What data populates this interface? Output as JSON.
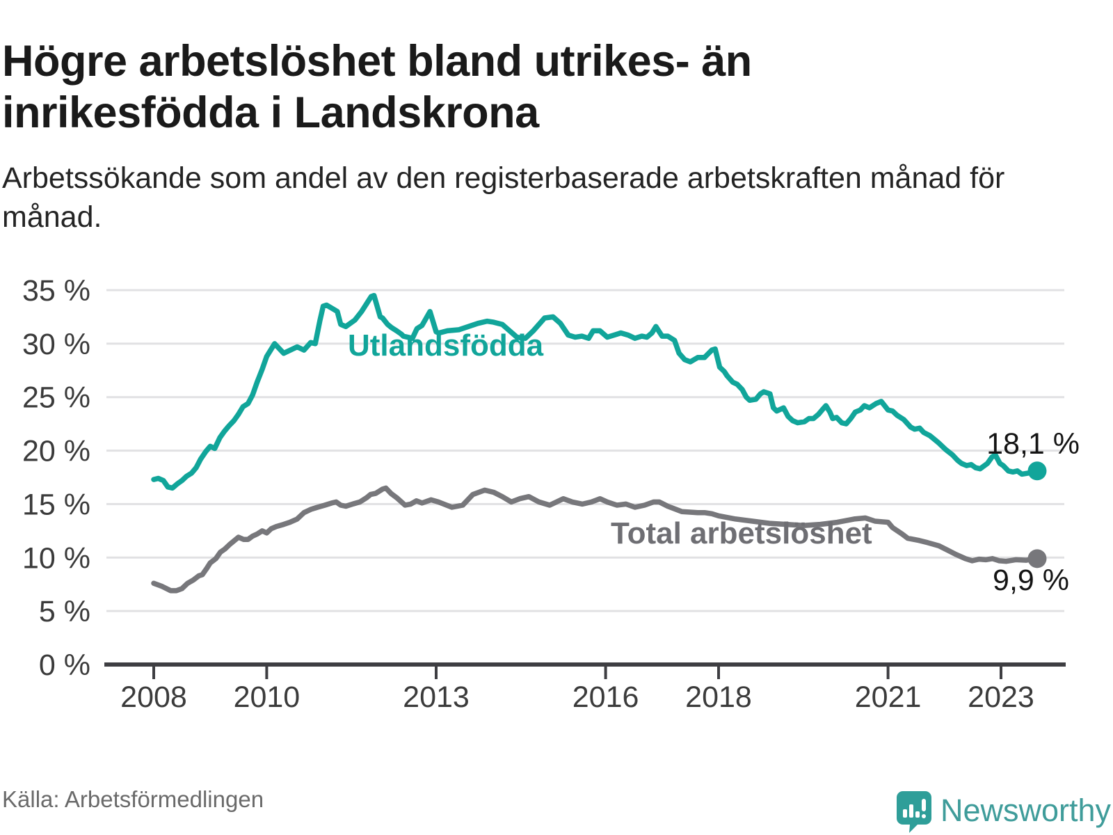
{
  "header": {
    "title": "Högre arbetslöshet bland utrikes- än inrikesfödda i Landskrona",
    "subtitle": "Arbetssökande som andel av den registerbaserade arbetskraften månad för månad."
  },
  "footer": {
    "source": "Källa: Arbetsförmedlingen",
    "brand": "Newsworthy"
  },
  "colors": {
    "teal_line": "#11a59a",
    "gray_line": "#77777b",
    "gray_label": "#6e6e73",
    "grid": "#e1e1e3",
    "axis": "#3e3e42",
    "axis_text": "#3b3b3b",
    "value_text": "#141414",
    "logo_icon": "#2f9e99",
    "logo_text": "#3f9c9a"
  },
  "chart_data": {
    "type": "line",
    "title": "Högre arbetslöshet bland utrikes- än inrikesfödda i Landskrona",
    "xlabel": "",
    "ylabel": "",
    "grid": true,
    "legend_position": "inline",
    "x_axis": {
      "ticks": [
        2008,
        2010,
        2013,
        2016,
        2018,
        2021,
        2023
      ],
      "range": [
        2007.2,
        2024.1
      ]
    },
    "y_axis": {
      "ticks": [
        0,
        5,
        10,
        15,
        20,
        25,
        30,
        35
      ],
      "tick_suffix": " %",
      "range": [
        0,
        35
      ]
    },
    "series": [
      {
        "name": "Utlandsfödda",
        "color": "#11a59a",
        "end_label": "18,1 %",
        "end_value": 18.1,
        "points": [
          [
            2008.0,
            17.3
          ],
          [
            2008.08,
            17.4
          ],
          [
            2008.17,
            17.2
          ],
          [
            2008.25,
            16.6
          ],
          [
            2008.33,
            16.5
          ],
          [
            2008.42,
            16.9
          ],
          [
            2008.5,
            17.2
          ],
          [
            2008.58,
            17.6
          ],
          [
            2008.67,
            17.9
          ],
          [
            2008.75,
            18.4
          ],
          [
            2008.83,
            19.2
          ],
          [
            2008.92,
            19.9
          ],
          [
            2009.0,
            20.4
          ],
          [
            2009.08,
            20.2
          ],
          [
            2009.17,
            21.2
          ],
          [
            2009.25,
            21.8
          ],
          [
            2009.33,
            22.3
          ],
          [
            2009.42,
            22.8
          ],
          [
            2009.5,
            23.4
          ],
          [
            2009.58,
            24.1
          ],
          [
            2009.67,
            24.4
          ],
          [
            2009.75,
            25.2
          ],
          [
            2009.83,
            26.4
          ],
          [
            2009.92,
            27.6
          ],
          [
            2010.0,
            28.8
          ],
          [
            2010.14,
            30.0
          ],
          [
            2010.3,
            29.1
          ],
          [
            2010.54,
            29.7
          ],
          [
            2010.66,
            29.4
          ],
          [
            2010.78,
            30.1
          ],
          [
            2010.86,
            30.0
          ],
          [
            2010.94,
            32.1
          ],
          [
            2011.0,
            33.5
          ],
          [
            2011.06,
            33.6
          ],
          [
            2011.19,
            33.2
          ],
          [
            2011.25,
            33.0
          ],
          [
            2011.31,
            31.8
          ],
          [
            2011.4,
            31.6
          ],
          [
            2011.56,
            32.2
          ],
          [
            2011.68,
            33.0
          ],
          [
            2011.85,
            34.4
          ],
          [
            2011.9,
            34.5
          ],
          [
            2012.01,
            32.5
          ],
          [
            2012.05,
            32.4
          ],
          [
            2012.14,
            31.8
          ],
          [
            2012.21,
            31.5
          ],
          [
            2012.3,
            31.2
          ],
          [
            2012.38,
            30.9
          ],
          [
            2012.42,
            30.7
          ],
          [
            2012.58,
            30.5
          ],
          [
            2012.66,
            31.4
          ],
          [
            2012.75,
            31.7
          ],
          [
            2012.89,
            33.0
          ],
          [
            2013.0,
            31.1
          ],
          [
            2013.05,
            31.0
          ],
          [
            2013.2,
            31.2
          ],
          [
            2013.4,
            31.3
          ],
          [
            2013.57,
            31.6
          ],
          [
            2013.74,
            31.9
          ],
          [
            2013.9,
            32.1
          ],
          [
            2014.02,
            32.0
          ],
          [
            2014.17,
            31.8
          ],
          [
            2014.3,
            31.2
          ],
          [
            2014.43,
            30.6
          ],
          [
            2014.58,
            30.5
          ],
          [
            2014.72,
            31.2
          ],
          [
            2014.92,
            32.4
          ],
          [
            2015.07,
            32.5
          ],
          [
            2015.2,
            31.9
          ],
          [
            2015.34,
            30.8
          ],
          [
            2015.46,
            30.6
          ],
          [
            2015.58,
            30.7
          ],
          [
            2015.7,
            30.5
          ],
          [
            2015.78,
            31.2
          ],
          [
            2015.9,
            31.2
          ],
          [
            2016.03,
            30.6
          ],
          [
            2016.15,
            30.8
          ],
          [
            2016.27,
            31.0
          ],
          [
            2016.4,
            30.8
          ],
          [
            2016.52,
            30.5
          ],
          [
            2016.64,
            30.7
          ],
          [
            2016.73,
            30.6
          ],
          [
            2016.82,
            31.0
          ],
          [
            2016.89,
            31.6
          ],
          [
            2017.0,
            30.7
          ],
          [
            2017.1,
            30.7
          ],
          [
            2017.22,
            30.3
          ],
          [
            2017.3,
            29.1
          ],
          [
            2017.4,
            28.5
          ],
          [
            2017.5,
            28.3
          ],
          [
            2017.63,
            28.7
          ],
          [
            2017.75,
            28.7
          ],
          [
            2017.88,
            29.4
          ],
          [
            2017.94,
            29.5
          ],
          [
            2018.02,
            27.8
          ],
          [
            2018.1,
            27.4
          ],
          [
            2018.15,
            27.0
          ],
          [
            2018.25,
            26.4
          ],
          [
            2018.33,
            26.2
          ],
          [
            2018.42,
            25.7
          ],
          [
            2018.49,
            25.0
          ],
          [
            2018.55,
            24.7
          ],
          [
            2018.66,
            24.8
          ],
          [
            2018.74,
            25.3
          ],
          [
            2018.8,
            25.5
          ],
          [
            2018.91,
            25.3
          ],
          [
            2018.97,
            24.0
          ],
          [
            2019.03,
            23.7
          ],
          [
            2019.15,
            24.0
          ],
          [
            2019.23,
            23.2
          ],
          [
            2019.31,
            22.8
          ],
          [
            2019.4,
            22.6
          ],
          [
            2019.52,
            22.7
          ],
          [
            2019.6,
            23.0
          ],
          [
            2019.68,
            23.0
          ],
          [
            2019.77,
            23.4
          ],
          [
            2019.85,
            23.9
          ],
          [
            2019.9,
            24.2
          ],
          [
            2019.97,
            23.6
          ],
          [
            2020.02,
            23.0
          ],
          [
            2020.09,
            23.1
          ],
          [
            2020.18,
            22.6
          ],
          [
            2020.26,
            22.5
          ],
          [
            2020.34,
            23.0
          ],
          [
            2020.42,
            23.6
          ],
          [
            2020.51,
            23.8
          ],
          [
            2020.58,
            24.2
          ],
          [
            2020.67,
            24.0
          ],
          [
            2020.79,
            24.4
          ],
          [
            2020.88,
            24.6
          ],
          [
            2021.0,
            23.8
          ],
          [
            2021.08,
            23.7
          ],
          [
            2021.16,
            23.3
          ],
          [
            2021.28,
            22.9
          ],
          [
            2021.4,
            22.2
          ],
          [
            2021.47,
            22.0
          ],
          [
            2021.56,
            22.1
          ],
          [
            2021.63,
            21.7
          ],
          [
            2021.74,
            21.4
          ],
          [
            2021.81,
            21.1
          ],
          [
            2021.9,
            20.7
          ],
          [
            2022.02,
            20.1
          ],
          [
            2022.14,
            19.6
          ],
          [
            2022.23,
            19.1
          ],
          [
            2022.3,
            18.8
          ],
          [
            2022.39,
            18.6
          ],
          [
            2022.47,
            18.7
          ],
          [
            2022.55,
            18.4
          ],
          [
            2022.63,
            18.3
          ],
          [
            2022.76,
            18.8
          ],
          [
            2022.84,
            19.4
          ],
          [
            2022.9,
            19.6
          ],
          [
            2022.98,
            18.8
          ],
          [
            2023.04,
            18.6
          ],
          [
            2023.13,
            18.1
          ],
          [
            2023.21,
            18.0
          ],
          [
            2023.29,
            18.1
          ],
          [
            2023.37,
            17.8
          ],
          [
            2023.48,
            17.9
          ],
          [
            2023.56,
            18.0
          ],
          [
            2023.64,
            18.1
          ]
        ]
      },
      {
        "name": "Total arbetslöshet",
        "color": "#77777b",
        "end_label": "9,9 %",
        "end_value": 9.9,
        "points": [
          [
            2008.0,
            7.6
          ],
          [
            2008.15,
            7.3
          ],
          [
            2008.3,
            6.9
          ],
          [
            2008.4,
            6.9
          ],
          [
            2008.5,
            7.1
          ],
          [
            2008.6,
            7.6
          ],
          [
            2008.7,
            7.9
          ],
          [
            2008.8,
            8.3
          ],
          [
            2008.86,
            8.4
          ],
          [
            2008.94,
            9.0
          ],
          [
            2009.0,
            9.5
          ],
          [
            2009.1,
            9.9
          ],
          [
            2009.18,
            10.5
          ],
          [
            2009.26,
            10.8
          ],
          [
            2009.34,
            11.2
          ],
          [
            2009.43,
            11.6
          ],
          [
            2009.5,
            11.9
          ],
          [
            2009.59,
            11.7
          ],
          [
            2009.67,
            11.7
          ],
          [
            2009.75,
            12.0
          ],
          [
            2009.83,
            12.2
          ],
          [
            2009.92,
            12.5
          ],
          [
            2010.0,
            12.3
          ],
          [
            2010.08,
            12.7
          ],
          [
            2010.17,
            12.9
          ],
          [
            2010.3,
            13.1
          ],
          [
            2010.41,
            13.3
          ],
          [
            2010.54,
            13.6
          ],
          [
            2010.66,
            14.2
          ],
          [
            2010.78,
            14.5
          ],
          [
            2010.9,
            14.7
          ],
          [
            2011.03,
            14.9
          ],
          [
            2011.15,
            15.1
          ],
          [
            2011.23,
            15.2
          ],
          [
            2011.31,
            14.9
          ],
          [
            2011.4,
            14.8
          ],
          [
            2011.52,
            15.0
          ],
          [
            2011.65,
            15.2
          ],
          [
            2011.77,
            15.6
          ],
          [
            2011.84,
            15.9
          ],
          [
            2011.93,
            16.0
          ],
          [
            2012.05,
            16.4
          ],
          [
            2012.11,
            16.5
          ],
          [
            2012.2,
            16.0
          ],
          [
            2012.3,
            15.6
          ],
          [
            2012.45,
            14.9
          ],
          [
            2012.55,
            15.0
          ],
          [
            2012.65,
            15.3
          ],
          [
            2012.75,
            15.1
          ],
          [
            2012.91,
            15.4
          ],
          [
            2013.04,
            15.2
          ],
          [
            2013.28,
            14.7
          ],
          [
            2013.47,
            14.9
          ],
          [
            2013.65,
            15.9
          ],
          [
            2013.86,
            16.3
          ],
          [
            2014.02,
            16.1
          ],
          [
            2014.17,
            15.7
          ],
          [
            2014.33,
            15.2
          ],
          [
            2014.48,
            15.5
          ],
          [
            2014.64,
            15.7
          ],
          [
            2014.82,
            15.2
          ],
          [
            2015.01,
            14.9
          ],
          [
            2015.13,
            15.2
          ],
          [
            2015.25,
            15.5
          ],
          [
            2015.41,
            15.2
          ],
          [
            2015.59,
            15.0
          ],
          [
            2015.75,
            15.2
          ],
          [
            2015.9,
            15.5
          ],
          [
            2016.03,
            15.2
          ],
          [
            2016.2,
            14.9
          ],
          [
            2016.36,
            15.0
          ],
          [
            2016.52,
            14.7
          ],
          [
            2016.69,
            14.9
          ],
          [
            2016.85,
            15.2
          ],
          [
            2016.95,
            15.2
          ],
          [
            2017.1,
            14.8
          ],
          [
            2017.35,
            14.3
          ],
          [
            2017.63,
            14.2
          ],
          [
            2017.75,
            14.2
          ],
          [
            2017.88,
            14.1
          ],
          [
            2018.0,
            13.9
          ],
          [
            2018.3,
            13.6
          ],
          [
            2018.6,
            13.4
          ],
          [
            2018.9,
            13.2
          ],
          [
            2019.2,
            13.1
          ],
          [
            2019.5,
            13.0
          ],
          [
            2019.8,
            13.1
          ],
          [
            2020.1,
            13.3
          ],
          [
            2020.4,
            13.6
          ],
          [
            2020.6,
            13.7
          ],
          [
            2020.77,
            13.4
          ],
          [
            2021.0,
            13.3
          ],
          [
            2021.08,
            12.8
          ],
          [
            2021.25,
            12.2
          ],
          [
            2021.35,
            11.8
          ],
          [
            2021.55,
            11.6
          ],
          [
            2021.7,
            11.4
          ],
          [
            2021.9,
            11.1
          ],
          [
            2022.05,
            10.7
          ],
          [
            2022.2,
            10.3
          ],
          [
            2022.37,
            9.9
          ],
          [
            2022.49,
            9.7
          ],
          [
            2022.61,
            9.85
          ],
          [
            2022.73,
            9.8
          ],
          [
            2022.85,
            9.9
          ],
          [
            2022.97,
            9.7
          ],
          [
            2023.09,
            9.65
          ],
          [
            2023.26,
            9.8
          ],
          [
            2023.45,
            9.75
          ],
          [
            2023.64,
            9.9
          ]
        ]
      }
    ]
  }
}
